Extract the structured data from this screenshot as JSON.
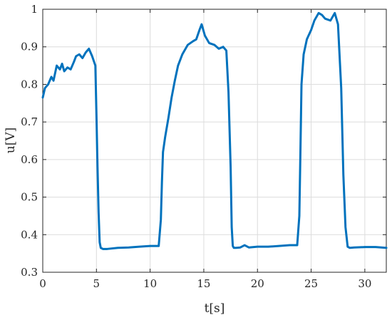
{
  "chart_data": {
    "type": "line",
    "title": "",
    "xlabel": "t[s]",
    "ylabel": "u[V]",
    "xlim": [
      0,
      32
    ],
    "ylim": [
      0.3,
      1.0
    ],
    "xticks": [
      0,
      5,
      10,
      15,
      20,
      25,
      30
    ],
    "yticks": [
      0.3,
      0.4,
      0.5,
      0.6,
      0.7,
      0.8,
      0.9,
      1.0
    ],
    "xtick_labels": [
      "0",
      "5",
      "10",
      "15",
      "20",
      "25",
      "30"
    ],
    "ytick_labels": [
      "0.3",
      "0.4",
      "0.5",
      "0.6",
      "0.7",
      "0.8",
      "0.9",
      "1"
    ],
    "grid": true,
    "color": "#0072BD",
    "series": [
      {
        "x": [
          0.0,
          0.2,
          0.5,
          0.8,
          1.0,
          1.3,
          1.6,
          1.8,
          2.0,
          2.3,
          2.6,
          2.9,
          3.1,
          3.4,
          3.7,
          4.0,
          4.3,
          4.6,
          4.9,
          5.0,
          5.1,
          5.2,
          5.3,
          5.4,
          5.6,
          6.0,
          7.0,
          8.0,
          9.0,
          10.0,
          10.8,
          11.0,
          11.1,
          11.2,
          11.4,
          11.7,
          12.0,
          12.3,
          12.6,
          13.0,
          13.5,
          14.0,
          14.3,
          14.6,
          14.8,
          15.1,
          15.5,
          16.0,
          16.4,
          16.8,
          17.1,
          17.3,
          17.5,
          17.6,
          17.7,
          17.8,
          18.0,
          18.4,
          18.8,
          19.2,
          20.0,
          21.0,
          22.0,
          23.0,
          23.7,
          23.9,
          24.0,
          24.1,
          24.3,
          24.6,
          25.0,
          25.3,
          25.7,
          26.0,
          26.3,
          26.8,
          27.2,
          27.5,
          27.8,
          28.0,
          28.2,
          28.4,
          28.6,
          29.0,
          30.0,
          31.0,
          32.0
        ],
        "y": [
          0.765,
          0.79,
          0.8,
          0.82,
          0.81,
          0.85,
          0.84,
          0.855,
          0.835,
          0.845,
          0.84,
          0.86,
          0.875,
          0.88,
          0.87,
          0.885,
          0.895,
          0.875,
          0.85,
          0.72,
          0.58,
          0.46,
          0.38,
          0.365,
          0.362,
          0.362,
          0.365,
          0.366,
          0.368,
          0.37,
          0.37,
          0.44,
          0.54,
          0.62,
          0.66,
          0.71,
          0.765,
          0.81,
          0.85,
          0.88,
          0.905,
          0.915,
          0.92,
          0.945,
          0.96,
          0.93,
          0.91,
          0.905,
          0.895,
          0.9,
          0.89,
          0.78,
          0.58,
          0.42,
          0.37,
          0.365,
          0.365,
          0.366,
          0.372,
          0.366,
          0.368,
          0.368,
          0.37,
          0.372,
          0.372,
          0.45,
          0.62,
          0.8,
          0.88,
          0.92,
          0.945,
          0.97,
          0.99,
          0.985,
          0.975,
          0.97,
          0.99,
          0.96,
          0.79,
          0.56,
          0.42,
          0.368,
          0.365,
          0.366,
          0.367,
          0.367,
          0.365
        ]
      }
    ]
  }
}
